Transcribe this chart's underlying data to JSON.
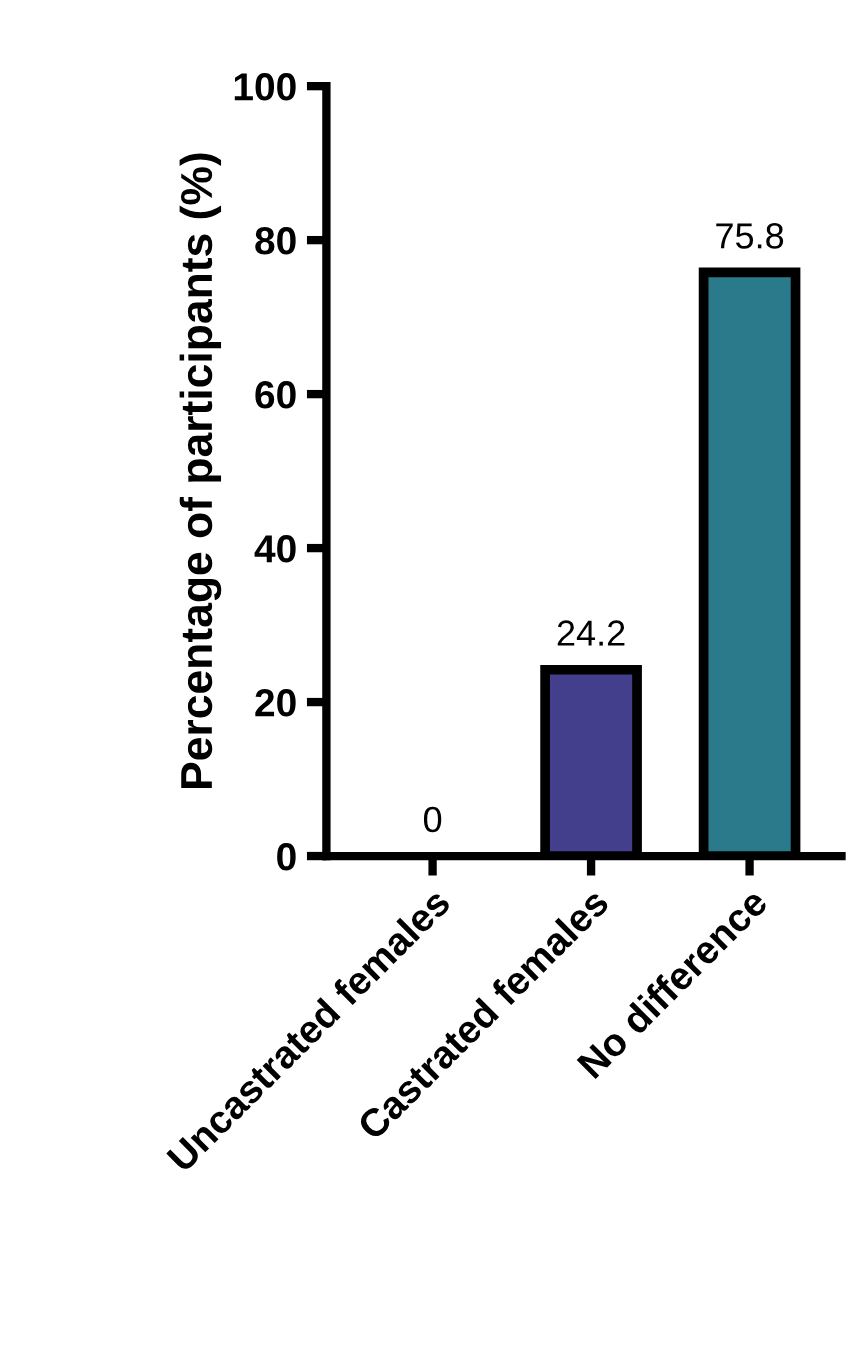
{
  "chart_data": {
    "type": "bar",
    "ylabel": "Percentage of participants (%)",
    "categories": [
      "Uncastrated females",
      "Castrated females",
      "No difference"
    ],
    "values": [
      0,
      24.2,
      75.8
    ],
    "colors": [
      null,
      "#443f8c",
      "#2b7a8c"
    ],
    "ylim": [
      0,
      100
    ],
    "yticks": [
      0,
      20,
      40,
      60,
      80,
      100
    ],
    "data_labels": true,
    "grid": false,
    "legend": false
  }
}
